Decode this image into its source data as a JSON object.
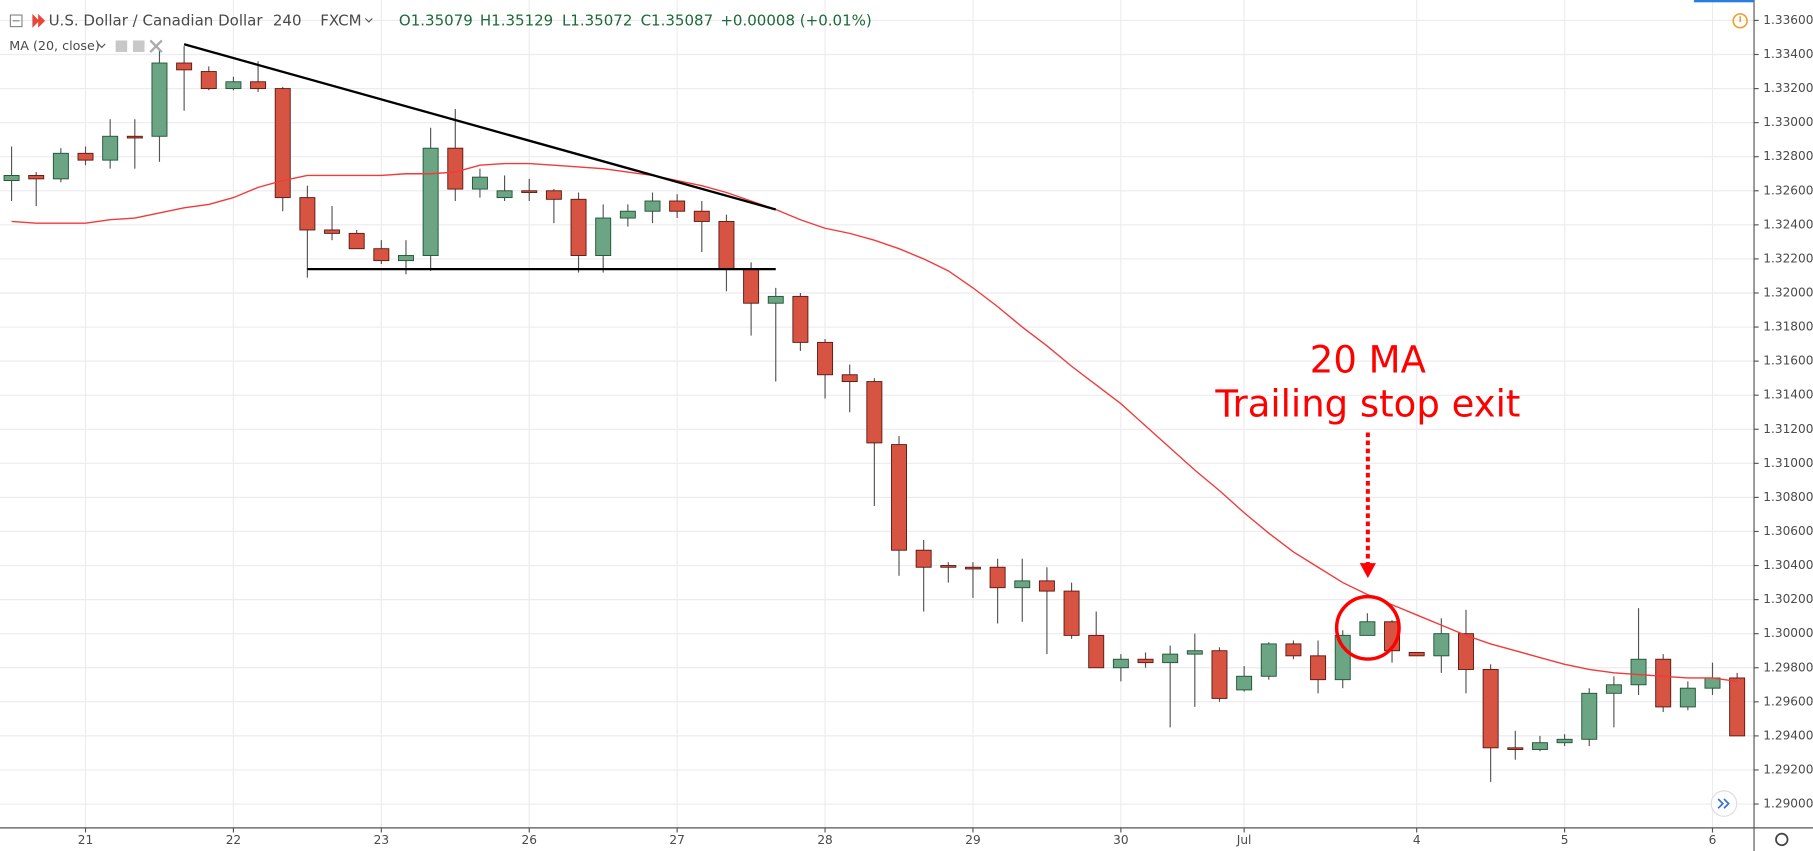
{
  "chart_data": {
    "type": "candlestick",
    "title": "U.S. Dollar / Canadian Dollar",
    "interval": "240",
    "source": "FXCM",
    "ohlc_header": [
      "O1.35079",
      "H1.35129",
      "L1.35072",
      "C1.35087",
      "+0.00008 (+0.01%)"
    ],
    "categories": [
      null,
      null,
      null,
      "21",
      null,
      null,
      null,
      null,
      null,
      "22",
      null,
      null,
      null,
      null,
      null,
      "23",
      null,
      null,
      null,
      null,
      null,
      "26",
      null,
      null,
      null,
      null,
      null,
      "27",
      null,
      null,
      null,
      null,
      null,
      "28",
      null,
      null,
      null,
      null,
      null,
      "29",
      null,
      null,
      null,
      null,
      null,
      "30",
      null,
      null,
      null,
      null,
      "Jul",
      null,
      null,
      null,
      null,
      null,
      null,
      "4",
      null,
      null,
      null,
      null,
      null,
      "5",
      null,
      null,
      null,
      null,
      null,
      "6",
      null
    ],
    "open": [
      1.3266,
      1.3269,
      1.3267,
      1.3282,
      1.3278,
      1.3292,
      1.3292,
      1.3335,
      1.333,
      1.332,
      1.3324,
      1.332,
      1.3256,
      1.3237,
      1.3235,
      1.3226,
      1.3219,
      1.3222,
      1.3285,
      1.3261,
      1.3256,
      1.326,
      1.326,
      1.3255,
      1.3222,
      1.3244,
      1.3248,
      1.3254,
      1.3248,
      1.3242,
      1.3214,
      1.3194,
      1.3198,
      1.3171,
      1.3152,
      1.3148,
      1.3111,
      1.3049,
      1.304,
      1.3039,
      1.3039,
      1.3027,
      1.3031,
      1.3025,
      1.2999,
      1.298,
      1.2985,
      1.2983,
      1.2988,
      1.299,
      1.2967,
      1.2975,
      1.2994,
      1.2987,
      1.2973,
      1.2999,
      1.3007,
      1.2989,
      1.2987,
      1.3,
      1.2979,
      1.2933,
      1.2932,
      1.2936,
      1.2938,
      1.2965,
      1.297,
      1.2985,
      1.2957,
      1.2968,
      1.2974
    ],
    "high": [
      1.3286,
      1.3271,
      1.3285,
      1.3286,
      1.3302,
      1.3302,
      1.3343,
      1.3345,
      1.3333,
      1.3327,
      1.3336,
      1.3321,
      1.3263,
      1.3251,
      1.3237,
      1.3231,
      1.3231,
      1.3297,
      1.3308,
      1.3273,
      1.3269,
      1.3267,
      1.3261,
      1.3259,
      1.3252,
      1.3252,
      1.3259,
      1.3258,
      1.3254,
      1.3246,
      1.3218,
      1.3203,
      1.32,
      1.3173,
      1.3158,
      1.315,
      1.3116,
      1.3055,
      1.3042,
      1.3042,
      1.3044,
      1.3044,
      1.3039,
      1.303,
      1.3013,
      1.2988,
      1.2989,
      1.2993,
      1.3,
      1.2992,
      1.2981,
      1.2995,
      1.2996,
      1.2996,
      1.3002,
      1.3012,
      1.3008,
      1.2989,
      1.3009,
      1.3014,
      1.2982,
      1.2943,
      1.294,
      1.2941,
      1.2968,
      1.2975,
      1.3015,
      1.2988,
      1.2972,
      1.2983,
      1.2977
    ],
    "low": [
      1.3254,
      1.3251,
      1.3265,
      1.3275,
      1.3273,
      1.3273,
      1.3277,
      1.3307,
      1.3319,
      1.3319,
      1.3318,
      1.3248,
      1.3209,
      1.3231,
      1.3226,
      1.3217,
      1.3211,
      1.3213,
      1.3254,
      1.3256,
      1.3254,
      1.3254,
      1.3241,
      1.3212,
      1.3212,
      1.3239,
      1.3241,
      1.3244,
      1.3224,
      1.3201,
      1.3175,
      1.3148,
      1.3166,
      1.3138,
      1.313,
      1.3075,
      1.3034,
      1.3013,
      1.303,
      1.3021,
      1.3006,
      1.3007,
      1.2988,
      1.2997,
      1.298,
      1.2972,
      1.298,
      1.2945,
      1.2957,
      1.296,
      1.2966,
      1.2973,
      1.2985,
      1.2965,
      1.2968,
      1.2999,
      1.2983,
      1.2987,
      1.2977,
      1.2965,
      1.2913,
      1.2926,
      1.2931,
      1.2934,
      1.2934,
      1.2945,
      1.2964,
      1.2954,
      1.2955,
      1.2964,
      1.294
    ],
    "close": [
      1.3269,
      1.3267,
      1.3282,
      1.3278,
      1.3292,
      1.3291,
      1.3335,
      1.3331,
      1.332,
      1.3324,
      1.332,
      1.3256,
      1.3237,
      1.3235,
      1.3226,
      1.3219,
      1.3222,
      1.3285,
      1.3261,
      1.3268,
      1.326,
      1.3259,
      1.3255,
      1.3222,
      1.3244,
      1.3248,
      1.3254,
      1.3248,
      1.3242,
      1.3214,
      1.3194,
      1.3198,
      1.3171,
      1.3152,
      1.3148,
      1.3112,
      1.3049,
      1.3039,
      1.3039,
      1.3038,
      1.3027,
      1.3031,
      1.3025,
      1.2999,
      1.298,
      1.2985,
      1.2983,
      1.2988,
      1.299,
      1.2962,
      1.2975,
      1.2994,
      1.2987,
      1.2973,
      1.2999,
      1.3007,
      1.299,
      1.2987,
      1.3,
      1.2979,
      1.2933,
      1.2932,
      1.2936,
      1.2938,
      1.2965,
      1.297,
      1.2985,
      1.2957,
      1.2968,
      1.2974,
      1.294
    ],
    "up_color": "#6ba583",
    "down_color": "#d75442",
    "ma": {
      "name": "MA (20, close)",
      "color": "#f23a3a",
      "values": [
        1.3242,
        1.3241,
        1.3241,
        1.3241,
        1.3243,
        1.3244,
        1.3247,
        1.325,
        1.3252,
        1.3256,
        1.3262,
        1.3266,
        1.3269,
        1.3269,
        1.3269,
        1.3269,
        1.327,
        1.327,
        1.3271,
        1.3275,
        1.3276,
        1.3276,
        1.3275,
        1.3274,
        1.3273,
        1.3271,
        1.3269,
        1.3266,
        1.3263,
        1.3259,
        1.3254,
        1.3249,
        1.3243,
        1.3238,
        1.3235,
        1.3231,
        1.3226,
        1.322,
        1.3213,
        1.3203,
        1.3192,
        1.318,
        1.3169,
        1.3157,
        1.3146,
        1.3135,
        1.3122,
        1.3109,
        1.3096,
        1.3084,
        1.3071,
        1.3059,
        1.3048,
        1.3039,
        1.303,
        1.3023,
        1.3017,
        1.3011,
        1.3005,
        1.2999,
        1.2994,
        1.299,
        1.2986,
        1.2982,
        1.2979,
        1.2977,
        1.2976,
        1.2975,
        1.2974,
        1.2974,
        1.2972
      ]
    },
    "trendlines": [
      {
        "color": "#000000",
        "x": [
          7,
          31
        ],
        "values": [
          1.3346,
          1.3249
        ]
      },
      {
        "color": "#000000",
        "x": [
          12,
          31
        ],
        "values": [
          1.3214,
          1.3214
        ]
      }
    ],
    "annotations": [
      "20 MA",
      "Trailing stop exit"
    ],
    "annotation_color": "#ff0000",
    "ylim": [
      1.2886,
      1.3372
    ],
    "yticks": [
      {
        "value": 1.29,
        "label": "1.29000"
      },
      {
        "value": 1.292,
        "label": "1.29200"
      },
      {
        "value": 1.294,
        "label": "1.29400"
      },
      {
        "value": 1.296,
        "label": "1.29600"
      },
      {
        "value": 1.298,
        "label": "1.29800"
      },
      {
        "value": 1.3,
        "label": "1.30000"
      },
      {
        "value": 1.302,
        "label": "1.30200"
      },
      {
        "value": 1.304,
        "label": "1.30400"
      },
      {
        "value": 1.306,
        "label": "1.30600"
      },
      {
        "value": 1.308,
        "label": "1.30800"
      },
      {
        "value": 1.31,
        "label": "1.31000"
      },
      {
        "value": 1.312,
        "label": "1.31200"
      },
      {
        "value": 1.314,
        "label": "1.31400"
      },
      {
        "value": 1.316,
        "label": "1.31600"
      },
      {
        "value": 1.318,
        "label": "1.31800"
      },
      {
        "value": 1.32,
        "label": "1.32000"
      },
      {
        "value": 1.322,
        "label": "1.32200"
      },
      {
        "value": 1.324,
        "label": "1.32400"
      },
      {
        "value": 1.326,
        "label": "1.32600"
      },
      {
        "value": 1.328,
        "label": "1.32800"
      },
      {
        "value": 1.33,
        "label": "1.33000"
      },
      {
        "value": 1.332,
        "label": "1.33200"
      },
      {
        "value": 1.334,
        "label": "1.33400"
      },
      {
        "value": 1.336,
        "label": "1.33600"
      }
    ],
    "grid": true
  }
}
